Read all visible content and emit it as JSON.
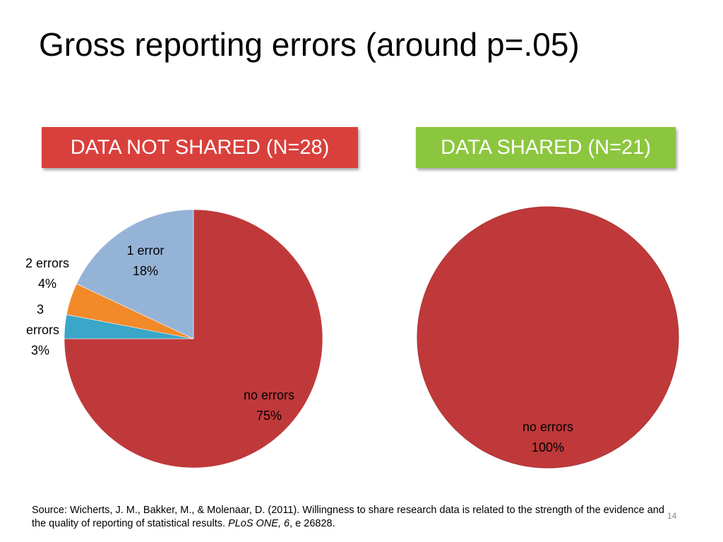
{
  "title": "Gross reporting errors (around p=.05)",
  "chart_data": [
    {
      "type": "pie",
      "title": "DATA NOT SHARED (N=28)",
      "header_color": "#d9403c",
      "categories": [
        "no errors",
        "3 errors",
        "2 errors",
        "1 error"
      ],
      "values": [
        75,
        3,
        4,
        18
      ],
      "value_labels": [
        "75%",
        "3%",
        "4%",
        "18%"
      ],
      "colors": [
        "#c0393a",
        "#3aa6c8",
        "#f28a2a",
        "#95b3d7"
      ]
    },
    {
      "type": "pie",
      "title": "DATA SHARED (N=21)",
      "header_color": "#8cc63f",
      "categories": [
        "no errors"
      ],
      "values": [
        100
      ],
      "value_labels": [
        "100%"
      ],
      "colors": [
        "#c0393a"
      ]
    }
  ],
  "source": [
    "Source: Wicherts, J. M., Bakker, M., & Molenaar, D. (2011). Willingness to share research data is related to the strength of the evidence and the quality of reporting of statistical results. ",
    "PLoS ONE, 6",
    ", e 26828."
  ],
  "page_number": 14
}
